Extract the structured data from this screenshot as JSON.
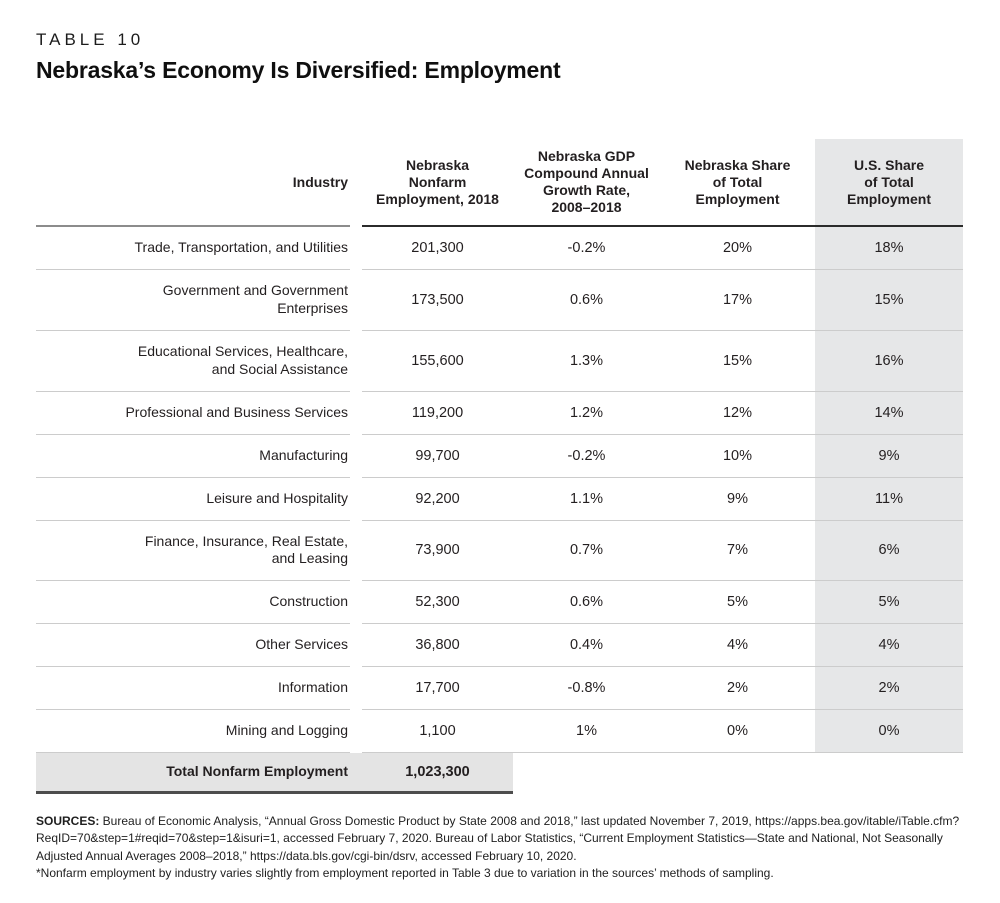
{
  "page": {
    "eyebrow": "TABLE 10",
    "title": "Nebraska’s Economy Is Diversified: Employment"
  },
  "table": {
    "headers": {
      "industry": "Industry",
      "employment": "Nebraska\nNonfarm\nEmployment, 2018",
      "gdp_cagr": "Nebraska GDP\nCompound Annual\nGrowth Rate,\n2008–2018",
      "ne_share": "Nebraska Share\nof Total\nEmployment",
      "us_share": "U.S. Share\nof Total\nEmployment"
    },
    "rows": [
      {
        "industry": "Trade, Transportation, and Utilities",
        "employment": "201,300",
        "gdp_cagr": "-0.2%",
        "ne_share": "20%",
        "us_share": "18%"
      },
      {
        "industry": "Government and Government\nEnterprises",
        "employment": "173,500",
        "gdp_cagr": "0.6%",
        "ne_share": "17%",
        "us_share": "15%"
      },
      {
        "industry": "Educational Services, Healthcare,\nand Social Assistance",
        "employment": "155,600",
        "gdp_cagr": "1.3%",
        "ne_share": "15%",
        "us_share": "16%"
      },
      {
        "industry": "Professional and Business Services",
        "employment": "119,200",
        "gdp_cagr": "1.2%",
        "ne_share": "12%",
        "us_share": "14%"
      },
      {
        "industry": "Manufacturing",
        "employment": "99,700",
        "gdp_cagr": "-0.2%",
        "ne_share": "10%",
        "us_share": "9%"
      },
      {
        "industry": "Leisure and Hospitality",
        "employment": "92,200",
        "gdp_cagr": "1.1%",
        "ne_share": "9%",
        "us_share": "11%"
      },
      {
        "industry": "Finance, Insurance, Real Estate,\nand Leasing",
        "employment": "73,900",
        "gdp_cagr": "0.7%",
        "ne_share": "7%",
        "us_share": "6%"
      },
      {
        "industry": "Construction",
        "employment": "52,300",
        "gdp_cagr": "0.6%",
        "ne_share": "5%",
        "us_share": "5%"
      },
      {
        "industry": "Other Services",
        "employment": "36,800",
        "gdp_cagr": "0.4%",
        "ne_share": "4%",
        "us_share": "4%"
      },
      {
        "industry": "Information",
        "employment": "17,700",
        "gdp_cagr": "-0.8%",
        "ne_share": "2%",
        "us_share": "2%"
      },
      {
        "industry": "Mining and Logging",
        "employment": "1,100",
        "gdp_cagr": "1%",
        "ne_share": "0%",
        "us_share": "0%"
      }
    ],
    "total": {
      "label": "Total Nonfarm Employment",
      "value": "1,023,300"
    }
  },
  "footer": {
    "sources_label": "SOURCES:",
    "sources_text": " Bureau of Economic Analysis, “Annual Gross Domestic Product by State 2008 and 2018,” last updated November 7, 2019, https://apps.bea.gov/itable/iTable.cfm?ReqID=70&step=1#reqid=70&step=1&isuri=1, accessed February 7, 2020. Bureau of Labor Statistics, “Current Employment Statistics—State and National, Not Seasonally Adjusted Annual Averages 2008–2018,” https://data.bls.gov/cgi-bin/dsrv, accessed February 10, 2020.",
    "footnote": "*Nonfarm employment by industry varies slightly from employment reported in Table 3 due to variation in the sources’ methods of sampling."
  },
  "colors": {
    "highlight_column_bg": "#e6e7e8",
    "total_row_bg": "#e4e4e4",
    "row_divider": "#cccccc",
    "header_rule_dark": "#2b2b2b",
    "header_rule_light": "#8c8c8c",
    "total_bottom_rule": "#4d4d4d",
    "text": "#231f20"
  },
  "chart_data": {
    "type": "table",
    "table_number": "TABLE 10",
    "title": "Nebraska's Economy Is Diversified: Employment",
    "columns": [
      "Industry",
      "Nebraska Nonfarm Employment, 2018",
      "Nebraska GDP Compound Annual Growth Rate, 2008–2018",
      "Nebraska Share of Total Employment",
      "U.S. Share of Total Employment"
    ],
    "rows": [
      {
        "industry": "Trade, Transportation, and Utilities",
        "nonfarm_employment_2018": 201300,
        "gdp_cagr_pct": -0.2,
        "nebraska_share_pct": 20,
        "us_share_pct": 18
      },
      {
        "industry": "Government and Government Enterprises",
        "nonfarm_employment_2018": 173500,
        "gdp_cagr_pct": 0.6,
        "nebraska_share_pct": 17,
        "us_share_pct": 15
      },
      {
        "industry": "Educational Services, Healthcare, and Social Assistance",
        "nonfarm_employment_2018": 155600,
        "gdp_cagr_pct": 1.3,
        "nebraska_share_pct": 15,
        "us_share_pct": 16
      },
      {
        "industry": "Professional and Business Services",
        "nonfarm_employment_2018": 119200,
        "gdp_cagr_pct": 1.2,
        "nebraska_share_pct": 12,
        "us_share_pct": 14
      },
      {
        "industry": "Manufacturing",
        "nonfarm_employment_2018": 99700,
        "gdp_cagr_pct": -0.2,
        "nebraska_share_pct": 10,
        "us_share_pct": 9
      },
      {
        "industry": "Leisure and Hospitality",
        "nonfarm_employment_2018": 92200,
        "gdp_cagr_pct": 1.1,
        "nebraska_share_pct": 9,
        "us_share_pct": 11
      },
      {
        "industry": "Finance, Insurance, Real Estate, and Leasing",
        "nonfarm_employment_2018": 73900,
        "gdp_cagr_pct": 0.7,
        "nebraska_share_pct": 7,
        "us_share_pct": 6
      },
      {
        "industry": "Construction",
        "nonfarm_employment_2018": 52300,
        "gdp_cagr_pct": 0.6,
        "nebraska_share_pct": 5,
        "us_share_pct": 5
      },
      {
        "industry": "Other Services",
        "nonfarm_employment_2018": 36800,
        "gdp_cagr_pct": 0.4,
        "nebraska_share_pct": 4,
        "us_share_pct": 4
      },
      {
        "industry": "Information",
        "nonfarm_employment_2018": 17700,
        "gdp_cagr_pct": -0.8,
        "nebraska_share_pct": 2,
        "us_share_pct": 2
      },
      {
        "industry": "Mining and Logging",
        "nonfarm_employment_2018": 1100,
        "gdp_cagr_pct": 1,
        "nebraska_share_pct": 0,
        "us_share_pct": 0
      }
    ],
    "total": {
      "industry": "Total Nonfarm Employment",
      "nonfarm_employment_2018": 1023300
    },
    "highlighted_column": "U.S. Share of Total Employment"
  }
}
